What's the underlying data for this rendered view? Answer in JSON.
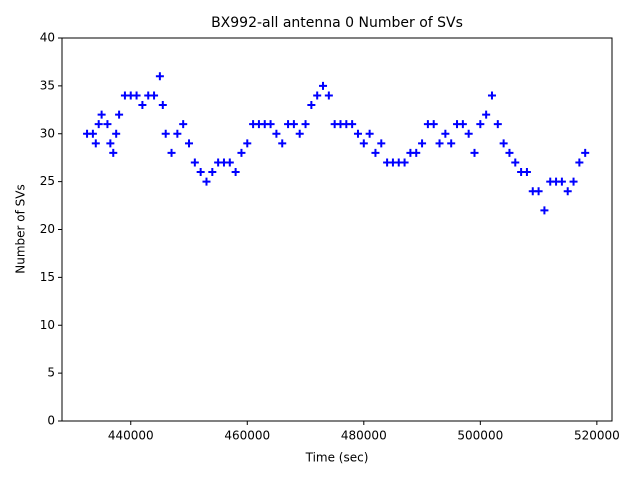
{
  "chart_data": {
    "type": "scatter",
    "title": "BX992-all antenna 0 Number of SVs",
    "x_label": "Time (sec)",
    "y_label": "Number of SVs",
    "xlim": [
      428200,
      522600
    ],
    "ylim": [
      0,
      40
    ],
    "xticks": [
      440000,
      460000,
      480000,
      500000,
      520000
    ],
    "yticks": [
      0,
      5,
      10,
      15,
      20,
      25,
      30,
      35,
      40
    ],
    "marker": "+",
    "series": [
      {
        "color": "#0000ff",
        "x": [
          432500,
          433500,
          434000,
          434500,
          435000,
          436000,
          436500,
          437000,
          437500,
          438000,
          439000,
          440000,
          441000,
          442000,
          443000,
          444000,
          445000,
          445500,
          446000,
          447000,
          448000,
          449000,
          450000,
          451000,
          452000,
          453000,
          454000,
          455000,
          456000,
          457000,
          458000,
          459000,
          460000,
          461000,
          462000,
          463000,
          464000,
          465000,
          466000,
          467000,
          468000,
          469000,
          470000,
          471000,
          472000,
          473000,
          474000,
          475000,
          476000,
          477000,
          478000,
          479000,
          480000,
          481000,
          482000,
          483000,
          484000,
          485000,
          486000,
          487000,
          488000,
          489000,
          490000,
          491000,
          492000,
          493000,
          494000,
          495000,
          496000,
          497000,
          498000,
          499000,
          500000,
          501000,
          502000,
          503000,
          504000,
          505000,
          506000,
          507000,
          508000,
          509000,
          510000,
          511000,
          512000,
          513000,
          514000,
          515000,
          516000,
          517000,
          518000
        ],
        "values": [
          30,
          30,
          29,
          31,
          32,
          31,
          29,
          28,
          30,
          32,
          34,
          34,
          34,
          33,
          34,
          34,
          36,
          33,
          30,
          28,
          30,
          31,
          29,
          27,
          26,
          25,
          26,
          27,
          27,
          27,
          26,
          28,
          29,
          31,
          31,
          31,
          31,
          30,
          29,
          31,
          31,
          30,
          31,
          33,
          34,
          35,
          34,
          31,
          31,
          31,
          31,
          30,
          29,
          30,
          28,
          29,
          27,
          27,
          27,
          27,
          28,
          28,
          29,
          31,
          31,
          29,
          30,
          29,
          31,
          31,
          30,
          28,
          31,
          32,
          34,
          31,
          29,
          28,
          27,
          26,
          26,
          24,
          24,
          22,
          25,
          25,
          25,
          24,
          25,
          27,
          28
        ]
      }
    ]
  }
}
